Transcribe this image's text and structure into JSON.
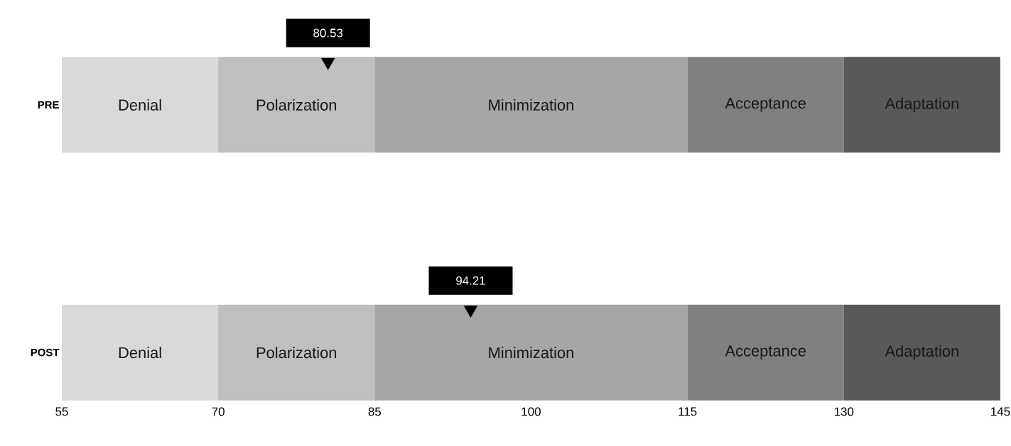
{
  "chart_data": {
    "type": "bar",
    "orientation": "horizontal",
    "categories": [
      "PRE",
      "POST"
    ],
    "series": [
      {
        "name": "Denial",
        "color": "#d9d9d9",
        "base": [
          55,
          55
        ],
        "values": [
          15,
          15
        ]
      },
      {
        "name": "Polarization",
        "color": "#bfbfbf",
        "base": [
          70,
          70
        ],
        "values": [
          15,
          15
        ]
      },
      {
        "name": "Minimization",
        "color": "#a6a6a6",
        "base": [
          85,
          85
        ],
        "values": [
          30,
          30
        ]
      },
      {
        "name": "Acceptance",
        "color": "#808080",
        "base": [
          115,
          115
        ],
        "values": [
          15,
          15
        ]
      },
      {
        "name": "Adaptation",
        "color": "#595959",
        "base": [
          130,
          130
        ],
        "values": [
          15,
          15
        ]
      },
      {
        "type": "scatter",
        "color": "#000000",
        "marker": "triangle",
        "values": [
          80.53,
          94.21
        ],
        "value_labels": [
          "80.53",
          "94.21"
        ]
      }
    ],
    "xlim": [
      55,
      145
    ],
    "xticks": [
      55,
      70,
      85,
      100,
      115,
      130,
      145
    ]
  }
}
